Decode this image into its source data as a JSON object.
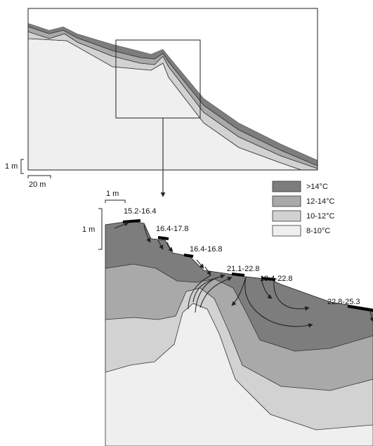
{
  "overview": {
    "vertical_scale": "1 m",
    "horizontal_scale": "20 m"
  },
  "detail": {
    "horizontal_scale": "1 m",
    "vertical_scale": "1 m",
    "annotations": [
      "15.2-16.4",
      "16.4-17.8",
      "16.4-16.8",
      "21.1-22.8",
      "19.4-22.8",
      "22.8-25.3"
    ]
  },
  "legend": [
    {
      "label": ">14°C",
      "color": "#7d7d7d"
    },
    {
      "label": "12-14°C",
      "color": "#a9a9a9"
    },
    {
      "label": "10-12°C",
      "color": "#d2d2d2"
    },
    {
      "label": "8-10°C",
      "color": "#efefef"
    }
  ]
}
